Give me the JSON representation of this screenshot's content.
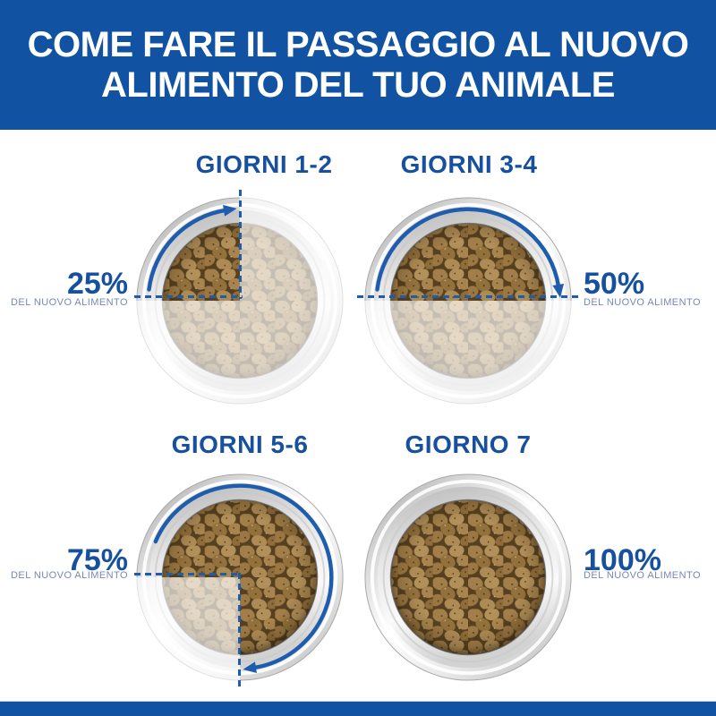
{
  "header": {
    "line1": "COME FARE IL PASSAGGIO AL NUOVO",
    "line2": "ALIMENTO DEL TUO ANIMALE"
  },
  "colors": {
    "banner_blue": "#1252A3",
    "title_text_blue": "#17509E",
    "guide_accent_blue": "#1E5DAD",
    "sublabel_blue": "#7488B8",
    "kibble_new_food": "#A0814C",
    "kibble_old_food_faded": "#D9C9A9",
    "bowl_metal_gray": "#D9D9D9",
    "background_white": "#FFFFFF"
  },
  "bowls": [
    {
      "title": "GIORNI 1-2",
      "percent": "25%",
      "sublabel": "DEL NUOVO ALIMENTO",
      "new_food_percent": 25,
      "label_side": "left",
      "faded_segments": [
        {
          "start_deg": 0,
          "end_deg": 270
        }
      ],
      "arrow_arc": {
        "r": 104,
        "start_deg": 277,
        "end_deg": 351
      }
    },
    {
      "title": "GIORNI 3-4",
      "percent": "50%",
      "sublabel": "DEL NUOVO ALIMENTO",
      "new_food_percent": 50,
      "label_side": "right",
      "faded_segments": [
        {
          "start_deg": 90,
          "end_deg": 270
        }
      ],
      "arrow_arc": {
        "r": 104,
        "start_deg": 277,
        "end_deg": 81
      }
    },
    {
      "title": "GIORNI 5-6",
      "percent": "75%",
      "sublabel": "DEL NUOVO ALIMENTO",
      "new_food_percent": 75,
      "label_side": "left",
      "faded_segments": [
        {
          "start_deg": 180,
          "end_deg": 270
        }
      ],
      "arrow_arc": {
        "r": 104,
        "start_deg": 293,
        "end_deg": 171
      }
    },
    {
      "title": "GIORNO 7",
      "percent": "100%",
      "sublabel": "DEL NUOVO ALIMENTO",
      "new_food_percent": 100,
      "label_side": "right",
      "faded_segments": [],
      "arrow_arc": null
    }
  ]
}
